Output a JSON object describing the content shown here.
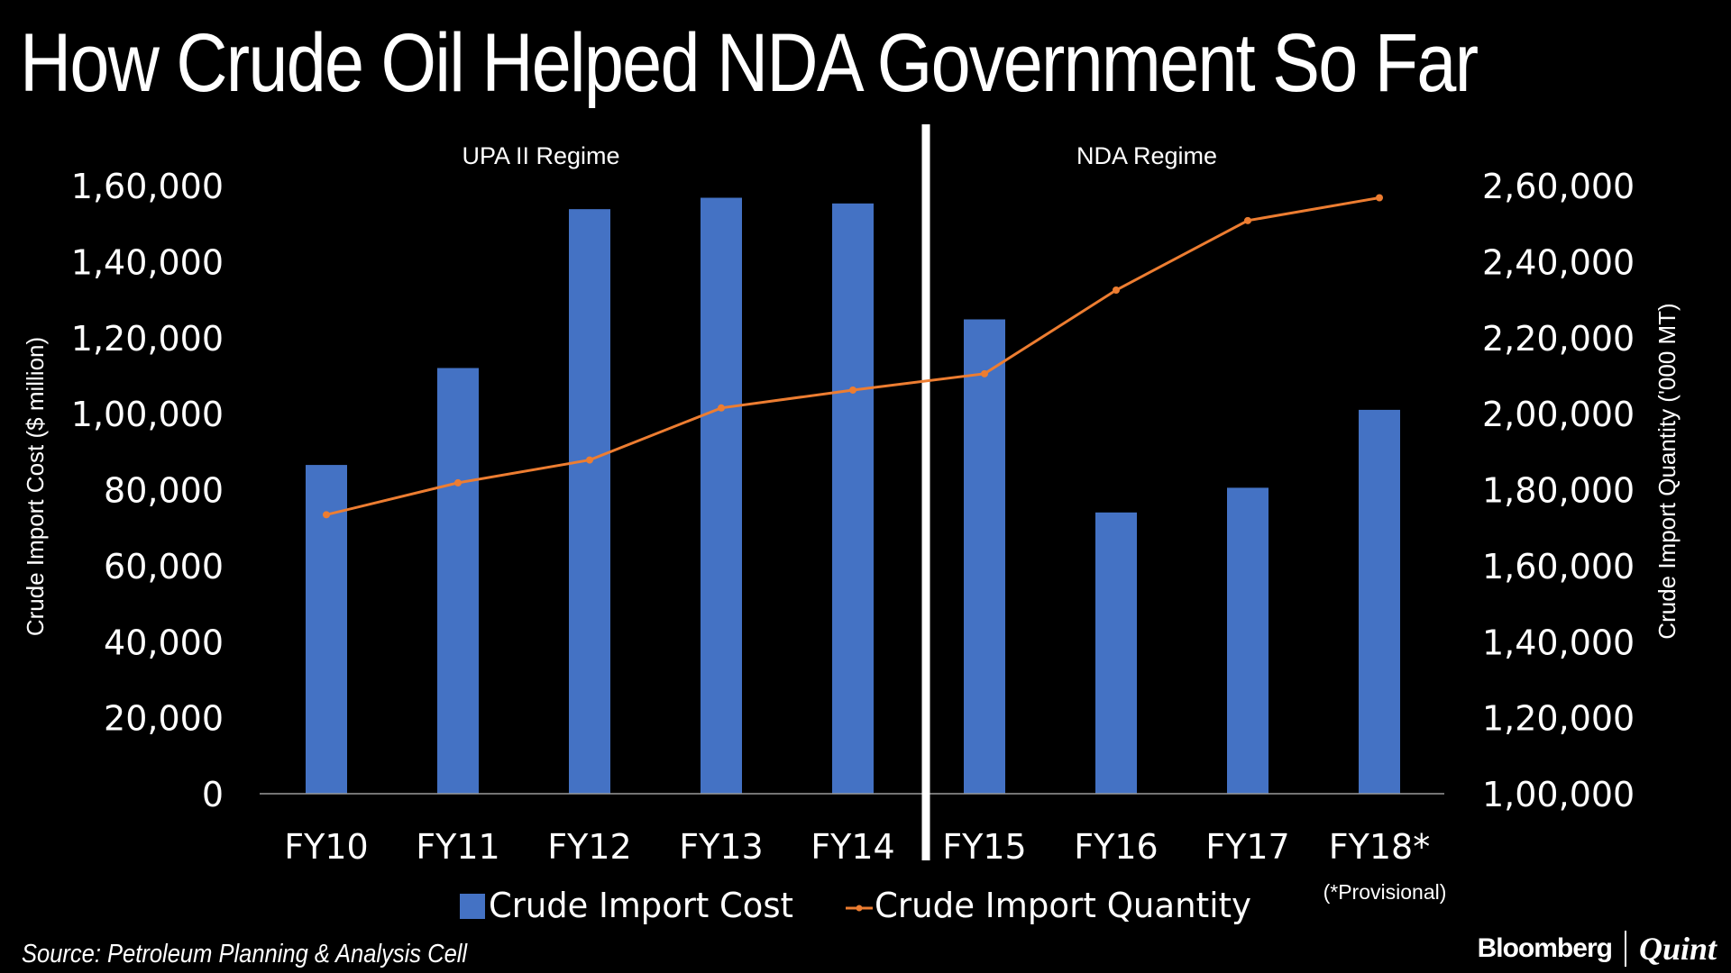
{
  "header": {
    "title": "How Crude Oil Helped NDA Government So Far"
  },
  "footer": {
    "source": "Source: Petroleum Planning & Analysis Cell",
    "brand_left": "Bloomberg",
    "brand_right": "Quint"
  },
  "chart_data": {
    "type": "bar",
    "title": "How Crude Oil Helped NDA Government So Far",
    "categories": [
      "FY10",
      "FY11",
      "FY12",
      "FY13",
      "FY14",
      "FY15",
      "FY16",
      "FY17",
      "FY18*"
    ],
    "series": [
      {
        "name": "Crude Import Cost",
        "type": "bar",
        "axis": "left",
        "color": "#4472C4",
        "values": [
          86500,
          112000,
          153800,
          156800,
          155300,
          124800,
          74000,
          80500,
          101000
        ]
      },
      {
        "name": "Crude Import Quantity",
        "type": "line",
        "axis": "right",
        "color": "#ED7D31",
        "values": [
          173400,
          181800,
          187800,
          201500,
          206200,
          210500,
          232500,
          250800,
          256800
        ]
      }
    ],
    "ylabel": "Crude Import Cost ($ million)",
    "ylabel_right": "Crude Import Quantity ('000 MT)",
    "ylim": [
      0,
      160000
    ],
    "ylim_right": [
      100000,
      260000
    ],
    "yticks": [
      "0",
      "20,000",
      "40,000",
      "60,000",
      "80,000",
      "1,00,000",
      "1,20,000",
      "1,40,000",
      "1,60,000"
    ],
    "yticks_right": [
      "1,00,000",
      "1,20,000",
      "1,40,000",
      "1,60,000",
      "1,80,000",
      "2,00,000",
      "2,20,000",
      "2,40,000",
      "2,60,000"
    ],
    "regime_labels": [
      "UPA II Regime",
      "NDA Regime"
    ],
    "annotation": "(*Provisional)",
    "legend_position": "bottom",
    "grid": false
  }
}
